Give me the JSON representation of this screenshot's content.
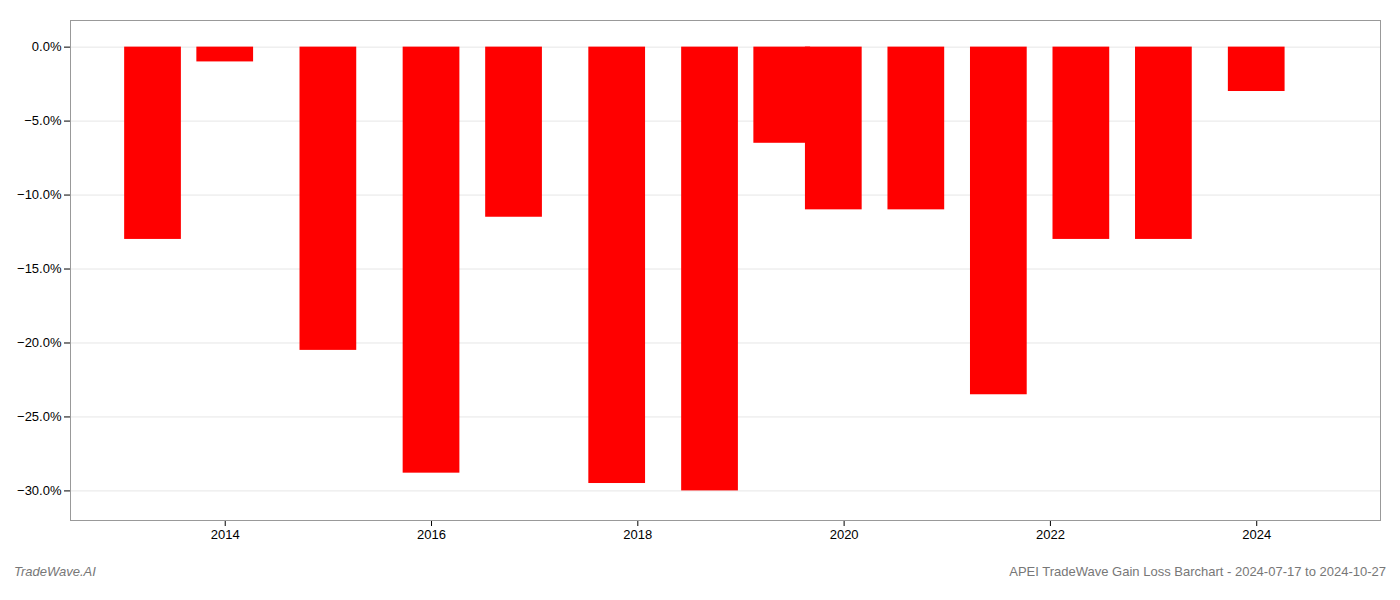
{
  "chart_data": {
    "type": "bar",
    "x": [
      2013.3,
      2014.0,
      2015.0,
      2016.0,
      2016.8,
      2017.8,
      2018.7,
      2019.4,
      2019.9,
      2020.7,
      2021.5,
      2022.3,
      2023.1,
      2024.0
    ],
    "values": [
      -13.0,
      -1.0,
      -20.5,
      -28.8,
      -11.5,
      -29.5,
      -30.0,
      -6.5,
      -11.0,
      -11.0,
      -23.5,
      -13.0,
      -13.0,
      -3.0
    ],
    "color": "#ff0000",
    "xlim": [
      2012.5,
      2025.2
    ],
    "xticks": [
      2014,
      2016,
      2018,
      2020,
      2022,
      2024
    ],
    "ylim": [
      -32,
      1.8
    ],
    "yticks": [
      {
        "value": 0.0,
        "label": "0.0%"
      },
      {
        "value": -5.0,
        "label": "−5.0%"
      },
      {
        "value": -10.0,
        "label": "−10.0%"
      },
      {
        "value": -15.0,
        "label": "−15.0%"
      },
      {
        "value": -20.0,
        "label": "−20.0%"
      },
      {
        "value": -25.0,
        "label": "−25.0%"
      },
      {
        "value": -30.0,
        "label": "−30.0%"
      }
    ],
    "grid": true,
    "annotations": [
      "TradeWave.AI",
      "APEI TradeWave Gain Loss Barchart - 2024-07-17 to 2024-10-27"
    ]
  }
}
